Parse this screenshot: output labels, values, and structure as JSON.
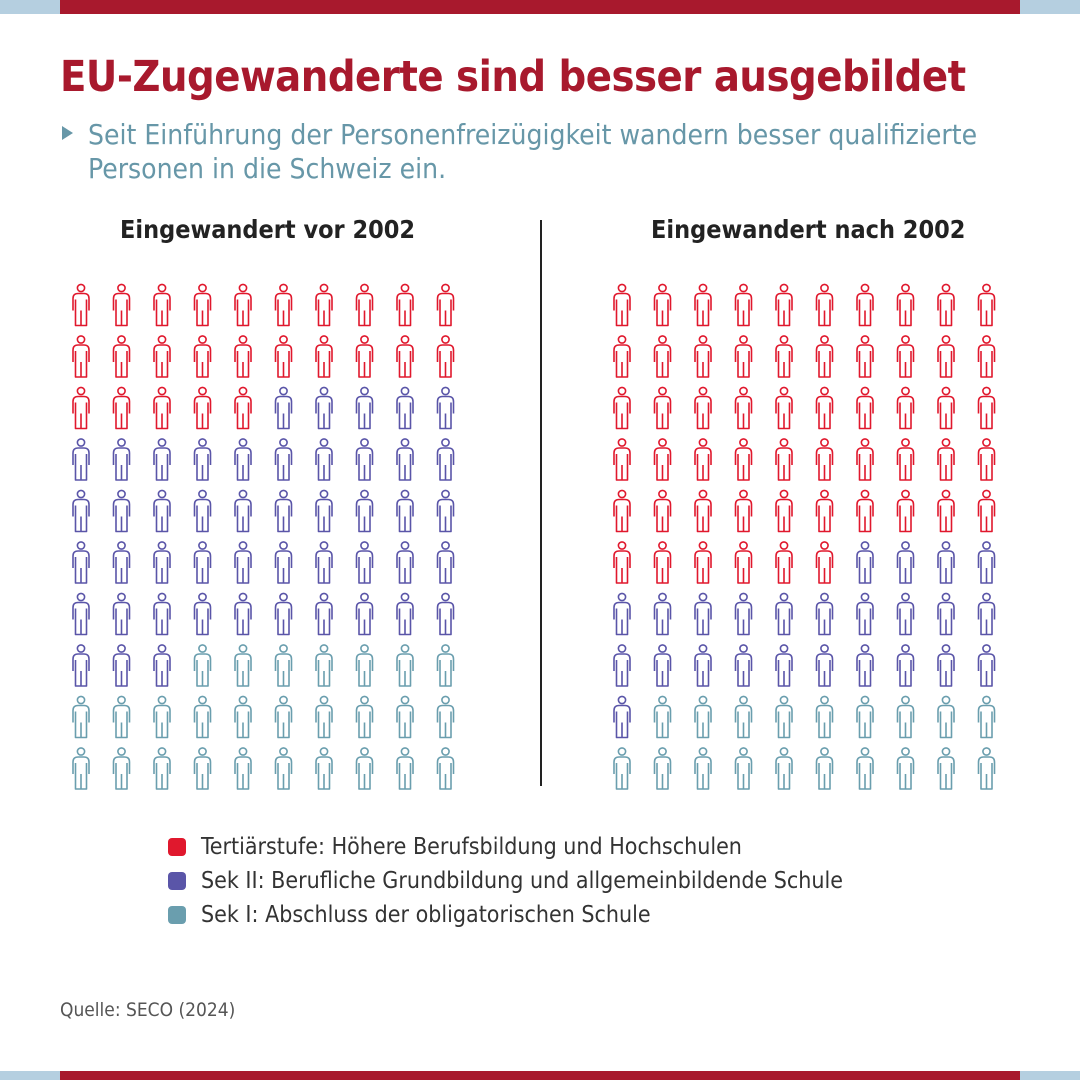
{
  "header": {
    "title": "EU-Zugewanderte sind besser ausgebildet",
    "subtitle": "Seit Einführung der Personenfreizügigkeit wandern besser qualifizierte Personen in die Schweiz ein."
  },
  "colors": {
    "brand": "#a8192d",
    "accent_light": "#b5cfe0",
    "subtitle": "#6797a8",
    "tertiaer": "#e0182d",
    "sek2": "#5a55a8",
    "sek1": "#6a9eae"
  },
  "chart_data": {
    "type": "pictogram",
    "title": "EU-Zugewanderte sind besser ausgebildet",
    "unit": "Personen von 100",
    "grid": "10x10",
    "categories": [
      "Tertiärstufe: Höhere Berufsbildung und Hochschulen",
      "Sek II: Berufliche Grundbildung und allgemeinbildende Schule",
      "Sek I: Abschluss der obligatorischen Schule"
    ],
    "series": [
      {
        "name": "Eingewandert vor 2002",
        "values": [
          25,
          48,
          27
        ]
      },
      {
        "name": "Eingewandert nach 2002",
        "values": [
          56,
          25,
          19
        ]
      }
    ],
    "legend_position": "bottom"
  },
  "panels": [
    {
      "heading": "Eingewandert vor 2002"
    },
    {
      "heading": "Eingewandert nach 2002"
    }
  ],
  "legend": [
    {
      "label": "Tertiärstufe: Höhere Berufsbildung und Hochschulen",
      "color": "#e0182d"
    },
    {
      "label": "Sek II: Berufliche Grundbildung und allgemeinbildende Schule",
      "color": "#5a55a8"
    },
    {
      "label": "Sek I: Abschluss der obligatorischen Schule",
      "color": "#6a9eae"
    }
  ],
  "footer": {
    "source": "Quelle: SECO (2024)"
  }
}
